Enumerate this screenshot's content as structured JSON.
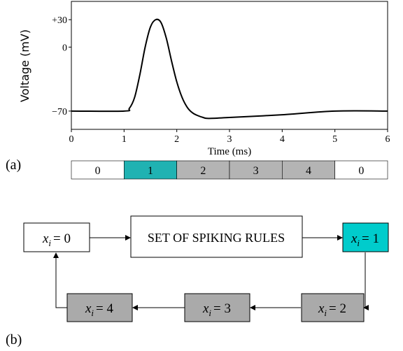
{
  "panel_a": {
    "label": "(a)",
    "plot": {
      "ylabel": "Voltage (mV)",
      "xlabel": "Time (ms)",
      "yticks": [
        {
          "value": 30,
          "label": "+30"
        },
        {
          "value": 0,
          "label": "0"
        },
        {
          "value": -70,
          "label": "−70"
        }
      ],
      "xticks": [
        {
          "value": 0,
          "label": "0"
        },
        {
          "value": 1,
          "label": "1"
        },
        {
          "value": 2,
          "label": "2"
        },
        {
          "value": 3,
          "label": "3"
        },
        {
          "value": 4,
          "label": "4"
        },
        {
          "value": 5,
          "label": "5"
        },
        {
          "value": 6,
          "label": "6"
        }
      ]
    },
    "state_bar": [
      {
        "label": "0",
        "from": 0,
        "to": 1,
        "color": "#ffffff"
      },
      {
        "label": "1",
        "from": 1,
        "to": 2,
        "color": "#20b2b2"
      },
      {
        "label": "2",
        "from": 2,
        "to": 3,
        "color": "#b4b4b4"
      },
      {
        "label": "3",
        "from": 3,
        "to": 4,
        "color": "#b4b4b4"
      },
      {
        "label": "4",
        "from": 4,
        "to": 5,
        "color": "#b4b4b4"
      },
      {
        "label": "0",
        "from": 5,
        "to": 6,
        "color": "#ffffff"
      }
    ]
  },
  "chart_data": {
    "type": "line",
    "xlabel": "Time (ms)",
    "ylabel": "Voltage (mV)",
    "xlim": [
      0,
      6
    ],
    "ylim": [
      -90,
      50
    ],
    "grid": false,
    "series": [
      {
        "x": [
          0,
          1.0,
          1.1,
          1.2,
          1.3,
          1.4,
          1.5,
          1.6,
          1.7,
          1.8,
          1.9,
          2.0,
          2.1,
          2.2,
          2.3,
          2.4,
          2.5,
          2.6,
          3.0,
          4.0,
          5.0,
          6.0
        ],
        "y": [
          -70,
          -70,
          -67,
          -55,
          -30,
          0,
          22,
          30,
          27,
          10,
          -15,
          -38,
          -55,
          -66,
          -72,
          -75,
          -77,
          -78,
          -77,
          -74,
          -70,
          -70
        ]
      }
    ]
  },
  "panel_b": {
    "label": "(b)",
    "var_symbol": "x",
    "var_subscript": "i",
    "colors": {
      "white": "#ffffff",
      "cyan": "#00cccc",
      "gray": "#aaaaaa"
    },
    "rules_label": "SET OF SPIKING RULES",
    "nodes": {
      "x0": {
        "value": "= 0"
      },
      "x1": {
        "value": "= 1"
      },
      "x2": {
        "value": "= 2"
      },
      "x3": {
        "value": "= 3"
      },
      "x4": {
        "value": "= 4"
      }
    }
  }
}
